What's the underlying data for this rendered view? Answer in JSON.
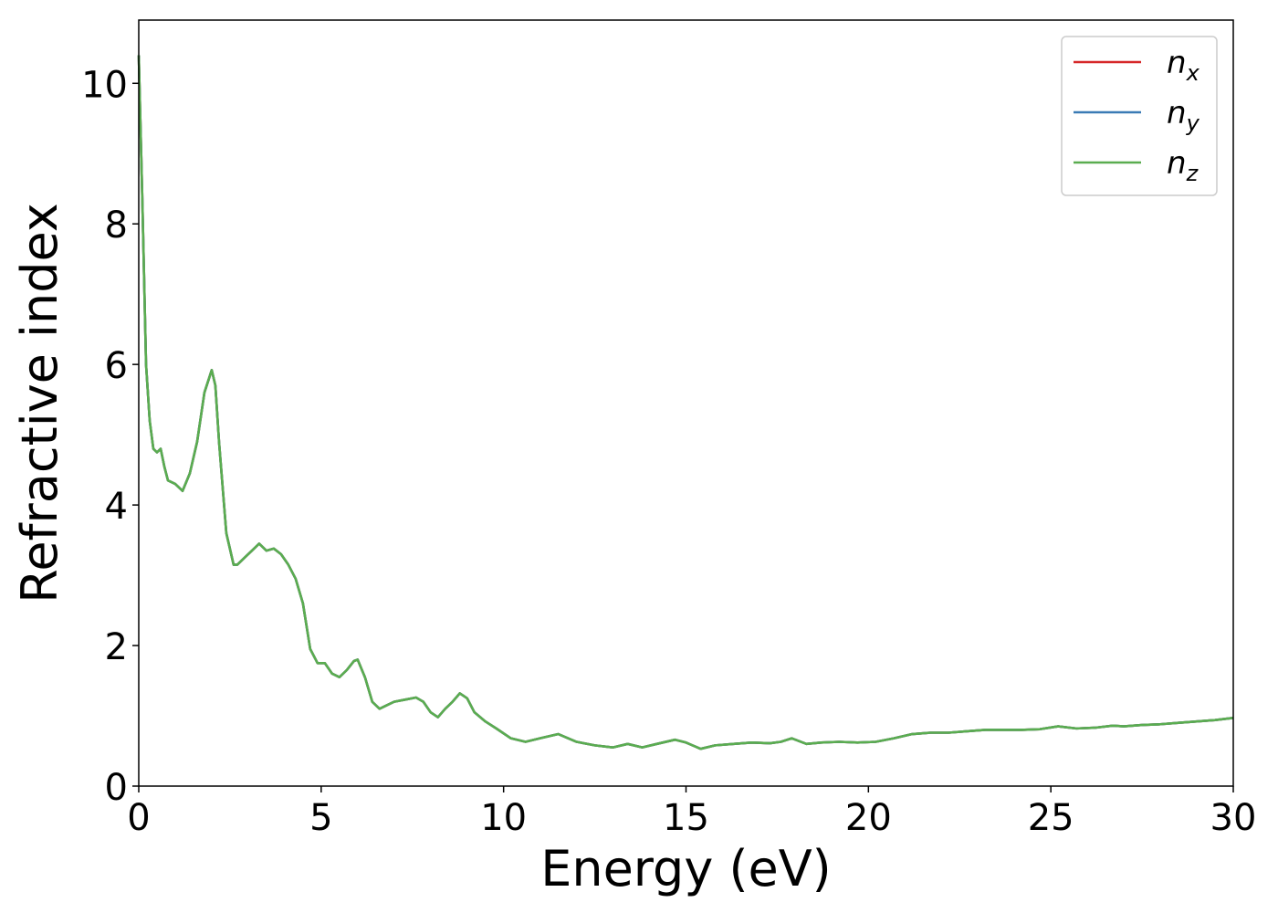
{
  "chart_data": {
    "type": "line",
    "title": "",
    "xlabel": "Energy (eV)",
    "ylabel": "Refractive index",
    "xlim": [
      0,
      30
    ],
    "ylim": [
      0,
      10.9
    ],
    "xticks": [
      0,
      5,
      10,
      15,
      20,
      25,
      30
    ],
    "yticks": [
      0,
      2,
      4,
      6,
      8,
      10
    ],
    "xtick_labels": [
      "0",
      "5",
      "10",
      "15",
      "20",
      "25",
      "30"
    ],
    "ytick_labels": [
      "0",
      "2",
      "4",
      "6",
      "8",
      "10"
    ],
    "grid": false,
    "legend_position": "top-right",
    "x": [
      0.0,
      0.1,
      0.2,
      0.3,
      0.4,
      0.5,
      0.6,
      0.7,
      0.8,
      1.0,
      1.2,
      1.4,
      1.6,
      1.8,
      2.0,
      2.1,
      2.2,
      2.4,
      2.6,
      2.7,
      2.9,
      3.1,
      3.3,
      3.5,
      3.7,
      3.9,
      4.1,
      4.3,
      4.5,
      4.7,
      4.9,
      5.1,
      5.3,
      5.5,
      5.7,
      5.9,
      6.0,
      6.2,
      6.4,
      6.6,
      6.8,
      7.0,
      7.3,
      7.6,
      7.8,
      8.0,
      8.2,
      8.4,
      8.6,
      8.8,
      9.0,
      9.2,
      9.5,
      9.8,
      10.2,
      10.6,
      11.0,
      11.5,
      12.0,
      12.5,
      13.0,
      13.4,
      13.8,
      14.2,
      14.7,
      15.0,
      15.4,
      15.8,
      16.3,
      16.8,
      17.3,
      17.6,
      17.9,
      18.3,
      18.7,
      19.2,
      19.7,
      20.2,
      20.7,
      21.2,
      21.7,
      22.2,
      22.7,
      23.2,
      23.7,
      24.2,
      24.7,
      25.2,
      25.7,
      26.2,
      26.7,
      27.0,
      27.5,
      28.0,
      28.5,
      29.0,
      29.5,
      30.0
    ],
    "series": [
      {
        "name": "n_x",
        "color": "#d62728",
        "values": [
          10.4,
          8.3,
          6.0,
          5.2,
          4.8,
          4.75,
          4.8,
          4.55,
          4.35,
          4.3,
          4.2,
          4.45,
          4.9,
          5.6,
          5.92,
          5.7,
          4.9,
          3.6,
          3.15,
          3.15,
          3.25,
          3.35,
          3.45,
          3.35,
          3.38,
          3.3,
          3.15,
          2.95,
          2.6,
          1.95,
          1.75,
          1.75,
          1.6,
          1.55,
          1.65,
          1.78,
          1.8,
          1.55,
          1.2,
          1.1,
          1.15,
          1.2,
          1.23,
          1.26,
          1.2,
          1.05,
          0.98,
          1.1,
          1.2,
          1.32,
          1.25,
          1.05,
          0.92,
          0.82,
          0.68,
          0.63,
          0.68,
          0.74,
          0.63,
          0.58,
          0.55,
          0.6,
          0.55,
          0.6,
          0.66,
          0.62,
          0.53,
          0.58,
          0.6,
          0.62,
          0.61,
          0.63,
          0.68,
          0.6,
          0.62,
          0.63,
          0.62,
          0.63,
          0.68,
          0.74,
          0.76,
          0.76,
          0.78,
          0.8,
          0.8,
          0.8,
          0.81,
          0.85,
          0.82,
          0.83,
          0.86,
          0.85,
          0.87,
          0.88,
          0.9,
          0.92,
          0.94,
          0.97
        ]
      },
      {
        "name": "n_y",
        "color": "#3a7bb5",
        "values": [
          10.4,
          8.3,
          6.0,
          5.2,
          4.8,
          4.75,
          4.8,
          4.55,
          4.35,
          4.3,
          4.2,
          4.45,
          4.9,
          5.6,
          5.92,
          5.7,
          4.9,
          3.6,
          3.15,
          3.15,
          3.25,
          3.35,
          3.45,
          3.35,
          3.38,
          3.3,
          3.15,
          2.95,
          2.6,
          1.95,
          1.75,
          1.75,
          1.6,
          1.55,
          1.65,
          1.78,
          1.8,
          1.55,
          1.2,
          1.1,
          1.15,
          1.2,
          1.23,
          1.26,
          1.2,
          1.05,
          0.98,
          1.1,
          1.2,
          1.32,
          1.25,
          1.05,
          0.92,
          0.82,
          0.68,
          0.63,
          0.68,
          0.74,
          0.63,
          0.58,
          0.55,
          0.6,
          0.55,
          0.6,
          0.66,
          0.62,
          0.53,
          0.58,
          0.6,
          0.62,
          0.61,
          0.63,
          0.68,
          0.6,
          0.62,
          0.63,
          0.62,
          0.63,
          0.68,
          0.74,
          0.76,
          0.76,
          0.78,
          0.8,
          0.8,
          0.8,
          0.81,
          0.85,
          0.82,
          0.83,
          0.86,
          0.85,
          0.87,
          0.88,
          0.9,
          0.92,
          0.94,
          0.97
        ]
      },
      {
        "name": "n_z",
        "color": "#5aad50",
        "values": [
          10.4,
          8.3,
          6.0,
          5.2,
          4.8,
          4.75,
          4.8,
          4.55,
          4.35,
          4.3,
          4.2,
          4.45,
          4.9,
          5.6,
          5.92,
          5.7,
          4.9,
          3.6,
          3.15,
          3.15,
          3.25,
          3.35,
          3.45,
          3.35,
          3.38,
          3.3,
          3.15,
          2.95,
          2.6,
          1.95,
          1.75,
          1.75,
          1.6,
          1.55,
          1.65,
          1.78,
          1.8,
          1.55,
          1.2,
          1.1,
          1.15,
          1.2,
          1.23,
          1.26,
          1.2,
          1.05,
          0.98,
          1.1,
          1.2,
          1.32,
          1.25,
          1.05,
          0.92,
          0.82,
          0.68,
          0.63,
          0.68,
          0.74,
          0.63,
          0.58,
          0.55,
          0.6,
          0.55,
          0.6,
          0.66,
          0.62,
          0.53,
          0.58,
          0.6,
          0.62,
          0.61,
          0.63,
          0.68,
          0.6,
          0.62,
          0.63,
          0.62,
          0.63,
          0.68,
          0.74,
          0.76,
          0.76,
          0.78,
          0.8,
          0.8,
          0.8,
          0.81,
          0.85,
          0.82,
          0.83,
          0.86,
          0.85,
          0.87,
          0.88,
          0.9,
          0.92,
          0.94,
          0.97
        ]
      }
    ],
    "legend": [
      {
        "base": "n",
        "sub": "x",
        "color": "#d62728"
      },
      {
        "base": "n",
        "sub": "y",
        "color": "#3a7bb5"
      },
      {
        "base": "n",
        "sub": "z",
        "color": "#5aad50"
      }
    ]
  }
}
